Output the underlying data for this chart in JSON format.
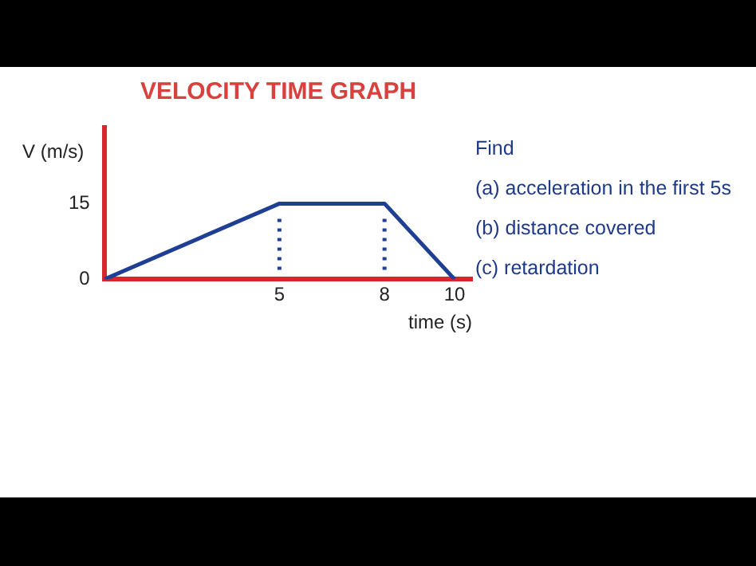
{
  "chart_data": {
    "type": "line",
    "title": "VELOCITY TIME GRAPH",
    "xlabel": "time (s)",
    "ylabel": "V (m/s)",
    "x": [
      0,
      5,
      8,
      10
    ],
    "series": [
      {
        "color": "#1f3f95",
        "values": [
          0,
          15,
          15,
          0
        ]
      }
    ],
    "xlim": [
      0,
      10.5
    ],
    "ylim": [
      0,
      30
    ],
    "xticks": [
      5,
      8,
      10
    ],
    "yticks": [
      0,
      15
    ],
    "ref_lines": [
      {
        "axis": "x",
        "value": 5,
        "color": "#1f3f95",
        "line_style": "dotted"
      },
      {
        "axis": "x",
        "value": 8,
        "color": "#1f3f95",
        "line_style": "dotted"
      }
    ],
    "annotations": [
      "Find",
      "(a) acceleration in the first 5s",
      "(b) distance covered",
      "(c) retardation"
    ],
    "grid": false,
    "legend": false,
    "marker": "none",
    "line_style": "solid"
  }
}
